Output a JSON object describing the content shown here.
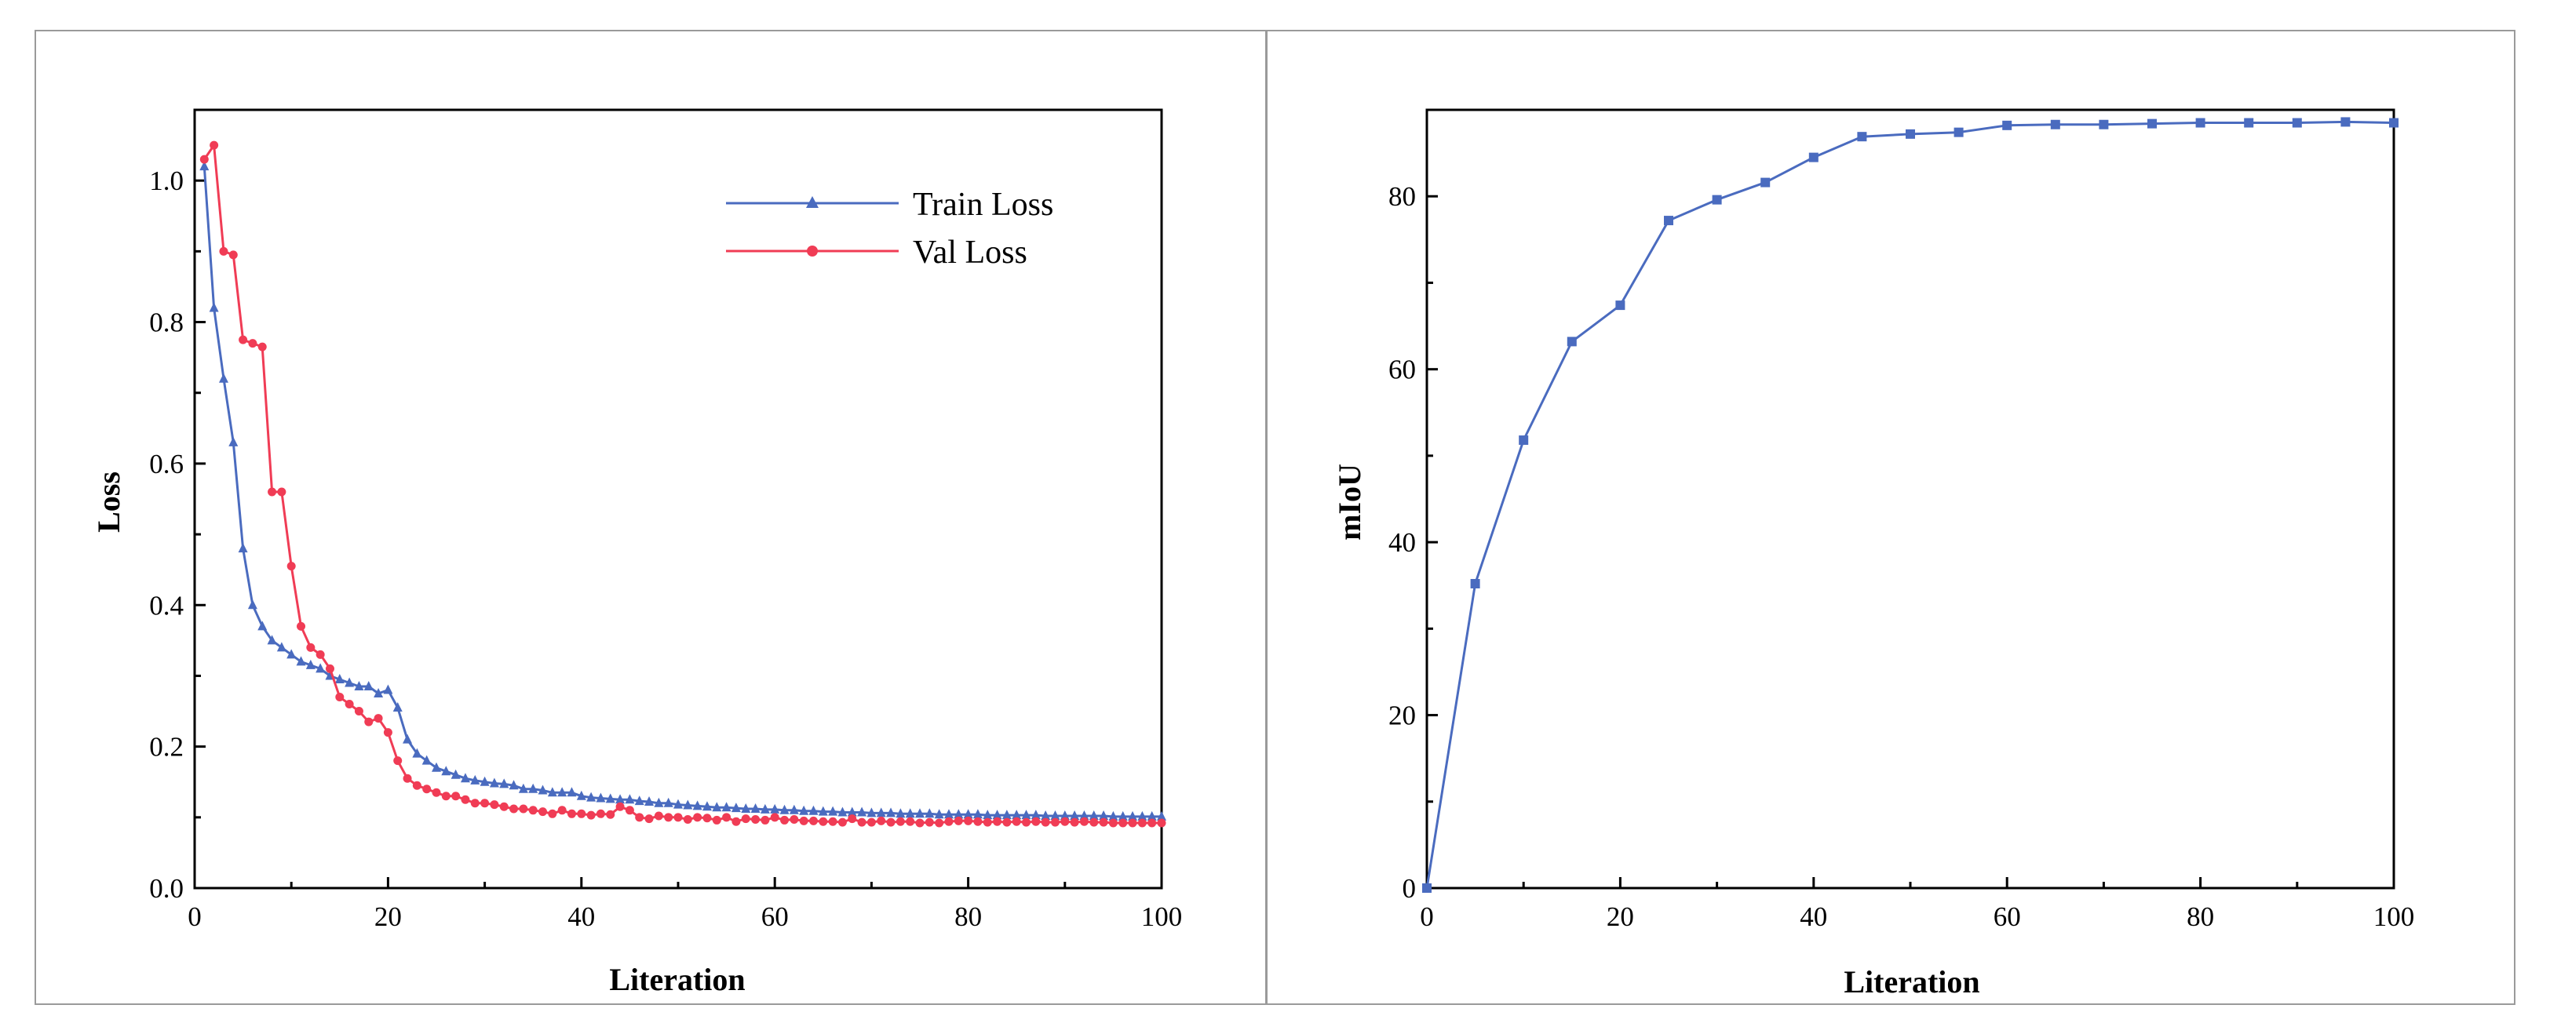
{
  "chart_data": [
    {
      "type": "line",
      "title": "",
      "xlabel": "Literation",
      "ylabel": "Loss",
      "xlim": [
        0,
        100
      ],
      "ylim": [
        0,
        1.1
      ],
      "xticks": [
        0,
        20,
        40,
        60,
        80,
        100
      ],
      "yticks": [
        0.0,
        0.2,
        0.4,
        0.6,
        0.8,
        1.0
      ],
      "xtick_labels": [
        "0",
        "20",
        "40",
        "60",
        "80",
        "100"
      ],
      "ytick_labels": [
        "0.0",
        "0.2",
        "0.4",
        "0.6",
        "0.8",
        "1.0"
      ],
      "legend": "top-right",
      "grid": false,
      "series": [
        {
          "name": "Train Loss",
          "color": "#4a6bbf",
          "marker": "triangle",
          "x": [
            1,
            2,
            3,
            4,
            5,
            6,
            7,
            8,
            9,
            10,
            11,
            12,
            13,
            14,
            15,
            16,
            17,
            18,
            19,
            20,
            21,
            22,
            23,
            24,
            25,
            26,
            27,
            28,
            29,
            30,
            31,
            32,
            33,
            34,
            35,
            36,
            37,
            38,
            39,
            40,
            41,
            42,
            43,
            44,
            45,
            46,
            47,
            48,
            49,
            50,
            51,
            52,
            53,
            54,
            55,
            56,
            57,
            58,
            59,
            60,
            61,
            62,
            63,
            64,
            65,
            66,
            67,
            68,
            69,
            70,
            71,
            72,
            73,
            74,
            75,
            76,
            77,
            78,
            79,
            80,
            81,
            82,
            83,
            84,
            85,
            86,
            87,
            88,
            89,
            90,
            91,
            92,
            93,
            94,
            95,
            96,
            97,
            98,
            99,
            100
          ],
          "values": [
            1.02,
            0.82,
            0.72,
            0.63,
            0.48,
            0.4,
            0.37,
            0.35,
            0.34,
            0.33,
            0.32,
            0.315,
            0.31,
            0.3,
            0.295,
            0.29,
            0.285,
            0.285,
            0.275,
            0.28,
            0.255,
            0.21,
            0.19,
            0.18,
            0.17,
            0.165,
            0.16,
            0.155,
            0.152,
            0.15,
            0.148,
            0.147,
            0.145,
            0.14,
            0.14,
            0.138,
            0.135,
            0.135,
            0.135,
            0.13,
            0.128,
            0.127,
            0.126,
            0.125,
            0.125,
            0.123,
            0.122,
            0.12,
            0.12,
            0.118,
            0.117,
            0.116,
            0.115,
            0.114,
            0.114,
            0.113,
            0.112,
            0.112,
            0.111,
            0.111,
            0.11,
            0.11,
            0.109,
            0.109,
            0.108,
            0.108,
            0.107,
            0.107,
            0.107,
            0.106,
            0.106,
            0.106,
            0.105,
            0.105,
            0.105,
            0.105,
            0.104,
            0.104,
            0.104,
            0.104,
            0.104,
            0.103,
            0.103,
            0.103,
            0.103,
            0.103,
            0.103,
            0.102,
            0.102,
            0.102,
            0.102,
            0.102,
            0.102,
            0.102,
            0.101,
            0.101,
            0.101,
            0.101,
            0.101,
            0.101
          ]
        },
        {
          "name": "Val Loss",
          "color": "#f03c55",
          "marker": "circle",
          "x": [
            1,
            2,
            3,
            4,
            5,
            6,
            7,
            8,
            9,
            10,
            11,
            12,
            13,
            14,
            15,
            16,
            17,
            18,
            19,
            20,
            21,
            22,
            23,
            24,
            25,
            26,
            27,
            28,
            29,
            30,
            31,
            32,
            33,
            34,
            35,
            36,
            37,
            38,
            39,
            40,
            41,
            42,
            43,
            44,
            45,
            46,
            47,
            48,
            49,
            50,
            51,
            52,
            53,
            54,
            55,
            56,
            57,
            58,
            59,
            60,
            61,
            62,
            63,
            64,
            65,
            66,
            67,
            68,
            69,
            70,
            71,
            72,
            73,
            74,
            75,
            76,
            77,
            78,
            79,
            80,
            81,
            82,
            83,
            84,
            85,
            86,
            87,
            88,
            89,
            90,
            91,
            92,
            93,
            94,
            95,
            96,
            97,
            98,
            99,
            100
          ],
          "values": [
            1.03,
            1.05,
            0.9,
            0.895,
            0.775,
            0.77,
            0.765,
            0.56,
            0.56,
            0.455,
            0.37,
            0.34,
            0.33,
            0.31,
            0.27,
            0.26,
            0.25,
            0.235,
            0.24,
            0.22,
            0.18,
            0.155,
            0.145,
            0.14,
            0.135,
            0.13,
            0.13,
            0.125,
            0.12,
            0.12,
            0.118,
            0.115,
            0.112,
            0.112,
            0.11,
            0.108,
            0.105,
            0.11,
            0.105,
            0.105,
            0.103,
            0.105,
            0.104,
            0.115,
            0.11,
            0.1,
            0.098,
            0.102,
            0.1,
            0.1,
            0.097,
            0.1,
            0.099,
            0.096,
            0.1,
            0.094,
            0.098,
            0.097,
            0.096,
            0.1,
            0.096,
            0.097,
            0.095,
            0.095,
            0.094,
            0.094,
            0.093,
            0.098,
            0.093,
            0.093,
            0.095,
            0.093,
            0.094,
            0.094,
            0.092,
            0.093,
            0.092,
            0.094,
            0.095,
            0.095,
            0.094,
            0.093,
            0.094,
            0.093,
            0.094,
            0.093,
            0.094,
            0.093,
            0.093,
            0.094,
            0.093,
            0.094,
            0.093,
            0.093,
            0.092,
            0.092,
            0.092,
            0.092,
            0.092,
            0.092
          ]
        }
      ]
    },
    {
      "type": "line",
      "title": "",
      "xlabel": "Literation",
      "ylabel": "mIoU",
      "xlim": [
        0,
        100
      ],
      "ylim": [
        0,
        90
      ],
      "xticks": [
        0,
        20,
        40,
        60,
        80,
        100
      ],
      "yticks": [
        0,
        20,
        40,
        60,
        80
      ],
      "xtick_labels": [
        "0",
        "20",
        "40",
        "60",
        "80",
        "100"
      ],
      "ytick_labels": [
        "0",
        "20",
        "40",
        "60",
        "80"
      ],
      "grid": false,
      "series": [
        {
          "name": "mIoU",
          "color": "#4a6bbf",
          "marker": "square",
          "x": [
            0,
            5,
            10,
            15,
            20,
            25,
            30,
            35,
            40,
            45,
            50,
            55,
            60,
            65,
            70,
            75,
            80,
            85,
            90,
            95,
            100
          ],
          "values": [
            0,
            35.2,
            51.8,
            63.2,
            67.4,
            77.2,
            79.6,
            81.6,
            84.5,
            86.9,
            87.2,
            87.4,
            88.2,
            88.3,
            88.3,
            88.4,
            88.5,
            88.5,
            88.5,
            88.6,
            88.5
          ]
        }
      ]
    }
  ]
}
